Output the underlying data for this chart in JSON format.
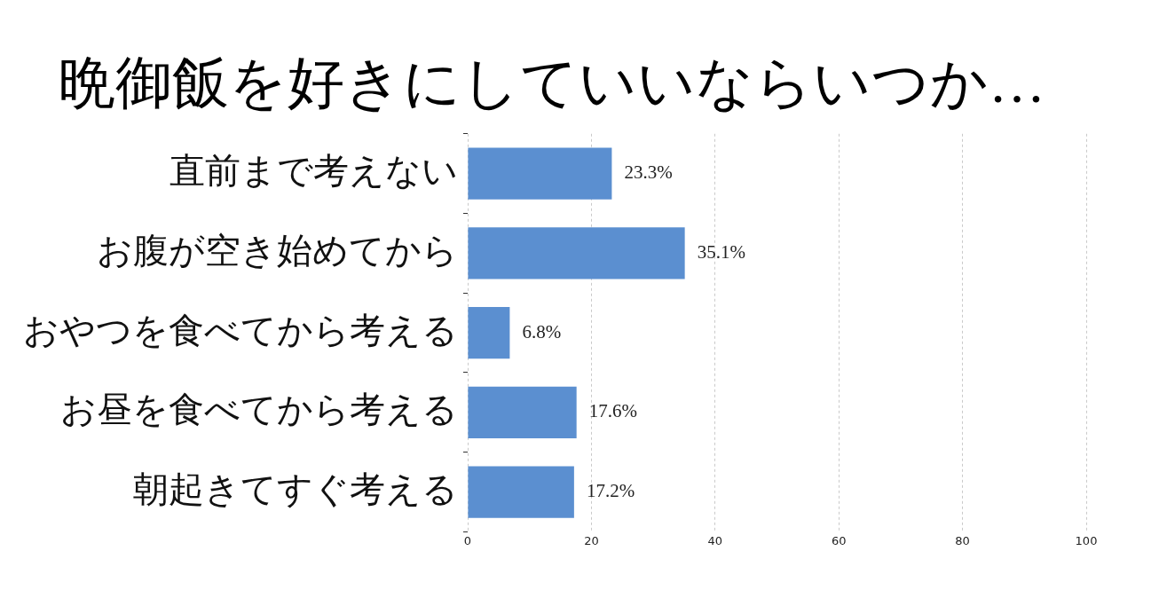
{
  "chart_data": {
    "type": "bar",
    "orientation": "horizontal",
    "title": "晩御飯を好きにしていいならいつか…",
    "categories": [
      "直前まで考えない",
      "お腹が空き始めてから",
      "おやつを食べてから考える",
      "お昼を食べてから考える",
      "朝起きてすぐ考える"
    ],
    "values": [
      23.3,
      35.1,
      6.8,
      17.6,
      17.2
    ],
    "value_labels": [
      "23.3%",
      "35.1%",
      "6.8%",
      "17.6%",
      "17.2%"
    ],
    "color": "#5b8fd0",
    "xlim": [
      0,
      100
    ],
    "xticks": [
      0,
      20,
      40,
      60,
      80,
      100
    ],
    "grid": "x",
    "legend": false
  }
}
